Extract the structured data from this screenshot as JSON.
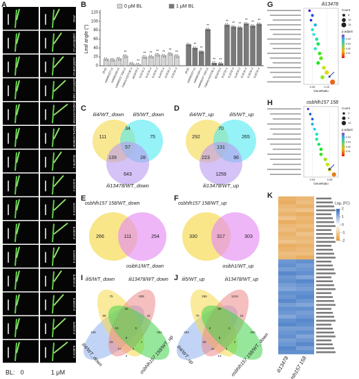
{
  "panel_a": {
    "label": "A",
    "lines": [
      "ZH11",
      "osbhlh157-c1",
      "osbhlh158-c1",
      "osbhlh157 158-c1",
      "OsbHLH157OE-1",
      "OsbHLH158OE-1",
      "ili13478-1",
      "ILI1OX-1",
      "ILI1OX-4",
      "ILI4OX-2",
      "ILI4OX-4",
      "ILI5OX-2",
      "ILI5OX-4",
      "ILI6OX-2",
      "ILI6OX-1"
    ],
    "bl_label": "BL:",
    "conditions": [
      "0",
      "1 μM"
    ]
  },
  "chart_data": [
    {
      "type": "bar",
      "label": "B",
      "ylabel": "Leaf angle (°)",
      "categories": [
        "ZH11",
        "osbhlh157-c1",
        "osbhlh158-c1",
        "osbhlh157 158-c1",
        "OsbHLH157OE-1",
        "ili13478-1",
        "ILI1OX-1",
        "ILI1OX-4",
        "ILI4OX-2",
        "ILI4OX-4",
        "ILI5OX-2",
        "ILI5OX-4"
      ],
      "series": [
        {
          "name": "0 μM BL",
          "color": "#d4d4d4",
          "values": [
            15,
            14,
            16,
            22,
            5,
            3,
            20,
            21,
            25,
            23,
            27,
            22
          ],
          "significance": [
            null,
            null,
            null,
            "**",
            null,
            "**",
            "**",
            "**",
            "**",
            "**",
            "**",
            "**"
          ]
        },
        {
          "name": "1 μM BL",
          "color": "#7a7a7a",
          "values": [
            48,
            40,
            32,
            82,
            6,
            5,
            92,
            88,
            86,
            95,
            90,
            94
          ],
          "significance": [
            null,
            "**",
            "**",
            "**",
            "**",
            "**",
            "**",
            "**",
            "**",
            "**",
            "**",
            "**"
          ]
        }
      ],
      "ylim": [
        0,
        120
      ],
      "yticks": [
        0,
        20,
        40,
        60,
        80,
        100,
        120
      ]
    },
    {
      "type": "scatter",
      "label": "G",
      "title": "ili13478",
      "xlabel": "GeneRatio",
      "x": [
        0.04,
        0.05,
        0.045,
        0.06,
        0.05,
        0.055,
        0.065,
        0.07,
        0.06,
        0.075,
        0.08,
        0.07,
        0.09,
        0.1,
        0.085,
        0.12
      ],
      "counts": [
        4,
        5,
        4,
        6,
        5,
        5,
        7,
        8,
        6,
        8,
        9,
        8,
        10,
        12,
        10,
        16
      ],
      "p_adjust": [
        0.045,
        0.04,
        0.042,
        0.035,
        0.03,
        0.032,
        0.028,
        0.025,
        0.03,
        0.02,
        0.018,
        0.022,
        0.012,
        0.01,
        0.015,
        0.004
      ],
      "xlim": [
        0.02,
        0.14
      ],
      "xticks": [
        0.05,
        {
          "value": 0.1,
          "label": "0.10"
        }
      ],
      "size_title": "Count",
      "size_ticks": [
        5,
        10,
        15
      ],
      "color_title": "p.adjust",
      "plim": [
        0,
        0.05
      ],
      "pticks": [
        0.01,
        0.02,
        0.03,
        0.04
      ]
    },
    {
      "type": "scatter",
      "label": "H",
      "title": "osbhlh157 158",
      "xlabel": "GeneRatio",
      "x": [
        0.03,
        0.035,
        0.04,
        0.04,
        0.045,
        0.05,
        0.05,
        0.055,
        0.06,
        0.06,
        0.07,
        0.075,
        0.08,
        0.09
      ],
      "counts": [
        3,
        4,
        4,
        5,
        5,
        6,
        6,
        6,
        7,
        7,
        8,
        9,
        10,
        12
      ],
      "p_adjust": [
        0.045,
        0.04,
        0.04,
        0.035,
        0.033,
        0.03,
        0.028,
        0.025,
        0.022,
        0.02,
        0.015,
        0.012,
        0.01,
        0.005
      ],
      "xlim": [
        0.02,
        0.1
      ],
      "xticks": [
        0.04,
        0.08
      ],
      "size_title": "Count",
      "size_ticks": [
        4,
        8,
        12
      ],
      "color_title": "p.adjust",
      "plim": [
        0,
        0.05
      ],
      "pticks": [
        0.01,
        0.02,
        0.03,
        0.04
      ]
    },
    {
      "type": "venn3",
      "label": "C",
      "sets": [
        "ili4/WT_down",
        "ili5/WT_down",
        "ili13478/WT_down"
      ],
      "values": [
        111,
        34,
        75,
        139,
        57,
        28,
        643
      ]
    },
    {
      "type": "venn3",
      "label": "D",
      "sets": [
        "ili4/WT_up",
        "ili5/WT_up",
        "ili13478/WT_up"
      ],
      "values": [
        292,
        70,
        265,
        223,
        131,
        96,
        1259
      ]
    },
    {
      "type": "venn2",
      "label": "E",
      "sets": [
        "osbhlh157 158/WT_down",
        "osibh1/WT_down"
      ],
      "values": [
        266,
        111,
        254
      ]
    },
    {
      "type": "venn2",
      "label": "F",
      "sets": [
        "osbhlh157 158/WT_up",
        "osibh1/WT_up"
      ],
      "values": [
        330,
        317,
        303
      ]
    },
    {
      "type": "venn4",
      "label": "I",
      "sets": [
        "ili4/WT_down",
        "ili5/WT_down",
        "ili13478/WT_down",
        "osbhlh157 158/WT_up"
      ],
      "values": [
        106,
        75,
        635,
        581,
        58,
        18,
        4,
        39,
        1,
        43,
        10,
        2,
        27,
        5,
        9
      ]
    },
    {
      "type": "venn4",
      "label": "J",
      "sets": [
        "ili4/WT_up",
        "ili5/WT_up",
        "ili13478/WT_up",
        "osbhlh157 158/WT_down"
      ],
      "values": [
        284,
        265,
        1234,
        306,
        70,
        60,
        13,
        96,
        2,
        15,
        6,
        3,
        20,
        4,
        8
      ]
    },
    {
      "type": "heatmap",
      "label": "K",
      "columns": [
        "ili13478",
        "osbhlh157 158"
      ],
      "legend_title": "Log₂ (FC)",
      "zlim": [
        -2,
        2
      ],
      "zticks": [
        2,
        1,
        0,
        -1,
        -2
      ],
      "values": [
        [
          -1.5,
          -1.4
        ],
        [
          -1.6,
          -1.3
        ],
        [
          -1.4,
          -1.5
        ],
        [
          -1.3,
          -1.2
        ],
        [
          -1.5,
          -1.6
        ],
        [
          -1.2,
          -1.4
        ],
        [
          -1.6,
          -1.5
        ],
        [
          -1.4,
          -1.3
        ],
        [
          -1.3,
          -1.5
        ],
        [
          -1.5,
          -1.2
        ],
        [
          -1.4,
          -1.4
        ],
        [
          -1.2,
          -1.3
        ],
        [
          -1.6,
          -1.5
        ],
        [
          -1.5,
          -1.4
        ],
        [
          -1.3,
          -1.3
        ],
        [
          -1.4,
          -1.6
        ],
        [
          1.4,
          1.5
        ],
        [
          1.5,
          1.3
        ],
        [
          1.3,
          1.4
        ],
        [
          1.6,
          1.5
        ],
        [
          1.4,
          1.2
        ],
        [
          1.5,
          1.6
        ],
        [
          1.3,
          1.4
        ],
        [
          1.2,
          1.3
        ],
        [
          1.5,
          1.5
        ],
        [
          1.4,
          1.6
        ],
        [
          1.6,
          1.4
        ],
        [
          1.3,
          1.2
        ],
        [
          1.5,
          1.5
        ],
        [
          1.4,
          1.3
        ],
        [
          1.2,
          1.4
        ],
        [
          1.5,
          1.6
        ],
        [
          1.6,
          1.5
        ],
        [
          1.3,
          1.3
        ],
        [
          1.4,
          1.5
        ],
        [
          1.5,
          1.2
        ],
        [
          1.3,
          1.4
        ],
        [
          1.4,
          1.6
        ],
        [
          1.6,
          1.3
        ],
        [
          1.5,
          1.5
        ]
      ]
    }
  ]
}
